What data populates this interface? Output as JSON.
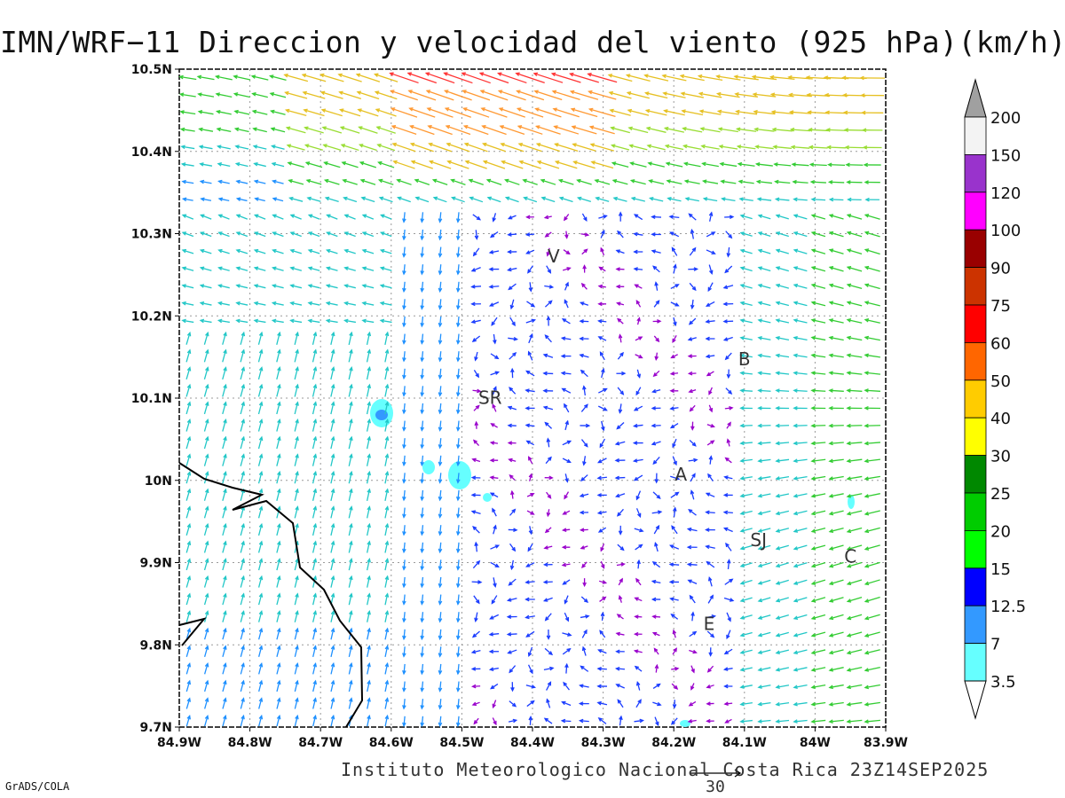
{
  "title": "IMN/WRF−11 Direccion y velocidad del viento (925 hPa)(km/h)",
  "footer": "Instituto Meteorologico Nacional Costa Rica 23Z14SEP2025",
  "grads_label": "GrADS/COLA",
  "reference_vector_label": "30",
  "x_ticks": [
    "84.9W",
    "84.8W",
    "84.7W",
    "84.6W",
    "84.5W",
    "84.4W",
    "84.3W",
    "84.2W",
    "84.1W",
    "84W",
    "83.9W"
  ],
  "y_ticks": [
    "10.5N",
    "10.4N",
    "10.3N",
    "10.2N",
    "10.1N",
    "10N",
    "9.9N",
    "9.8N",
    "9.7N"
  ],
  "station_labels": [
    {
      "text": "V",
      "lon": -84.37,
      "lat": 10.265
    },
    {
      "text": "B",
      "lon": -84.1,
      "lat": 10.14
    },
    {
      "text": "SR",
      "lon": -84.46,
      "lat": 10.093
    },
    {
      "text": "A",
      "lon": -84.19,
      "lat": 10.0
    },
    {
      "text": "SJ",
      "lon": -84.08,
      "lat": 9.92
    },
    {
      "text": "C",
      "lon": -83.95,
      "lat": 9.9
    },
    {
      "text": "E",
      "lon": -84.15,
      "lat": 9.818
    }
  ],
  "colorbar": {
    "labels": [
      "200",
      "150",
      "120",
      "100",
      "90",
      "75",
      "60",
      "50",
      "40",
      "30",
      "25",
      "20",
      "15",
      "12.5",
      "7",
      "3.5"
    ],
    "colors": [
      "#f3f3f3",
      "#9933cc",
      "#ff00ff",
      "#990000",
      "#cc3300",
      "#ff0000",
      "#ff6600",
      "#ffcc00",
      "#ffff00",
      "#008800",
      "#00cc00",
      "#00ff00",
      "#0000ff",
      "#3399ff",
      "#66ffff"
    ],
    "top_color": "#a0a0a0",
    "bottom_color": "#ffffff"
  },
  "arrow_colors": {
    "calm": "#9900cc",
    "weak": "#1a3cff",
    "light": "#1e90ff",
    "moderate": "#22c7c7",
    "fresh": "#33cc33",
    "strong": "#99dd33",
    "very_strong": "#e6c022",
    "intense": "#ff9933",
    "extreme": "#ff3333"
  },
  "coastline_color": "#000000"
}
